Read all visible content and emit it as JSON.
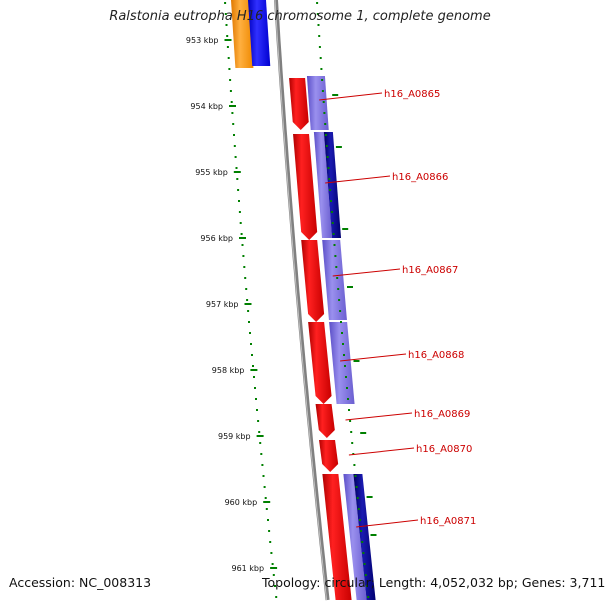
{
  "title": "Ralstonia eutropha H16 chromosome 1, complete genome",
  "accession": "Accession: NC_008313",
  "summary": "Topology: circular; Length: 4,052,032 bp; Genes: 3,711",
  "ticks": [
    "953 kbp",
    "954 kbp",
    "955 kbp",
    "956 kbp",
    "957 kbp",
    "958 kbp",
    "959 kbp",
    "960 kbp",
    "961 kbp"
  ],
  "genes": [
    "h16_A0865",
    "h16_A0866",
    "h16_A0867",
    "h16_A0868",
    "h16_A0869",
    "h16_A0870",
    "h16_A0871"
  ],
  "colors": {
    "backbone": "#808080",
    "cds_red": "#ff0000",
    "cog_lilac": "#7b6fd8",
    "cog_navy": "#00008b",
    "cog_blue": "#0000ff",
    "cog_orange": "#ff9900",
    "tick_green": "#008000",
    "label_red": "#cc0000"
  }
}
